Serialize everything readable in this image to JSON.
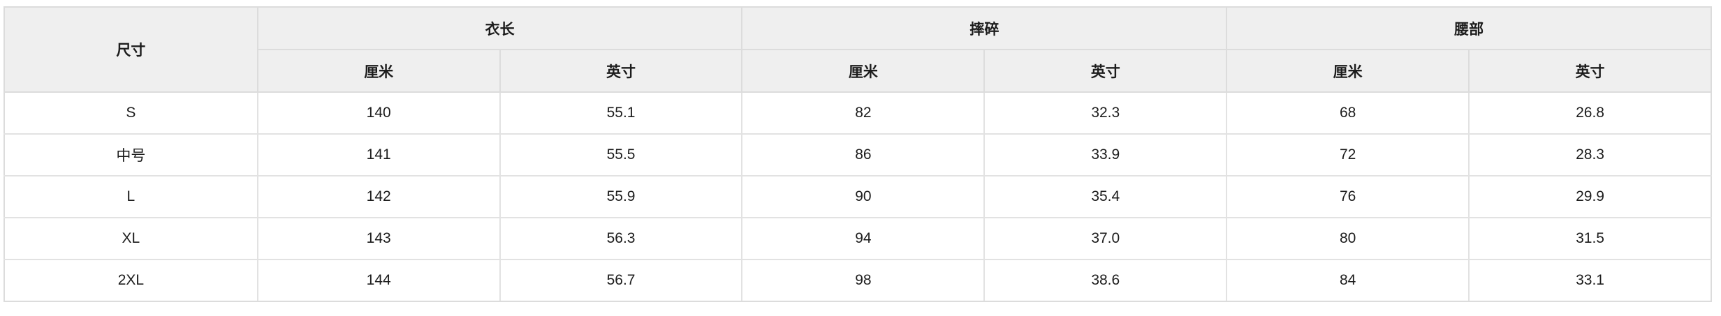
{
  "chart_data": {
    "type": "table",
    "corner_header": "尺寸",
    "column_groups": [
      {
        "label": "衣长",
        "subcolumns": [
          "厘米",
          "英寸"
        ]
      },
      {
        "label": "摔碎",
        "subcolumns": [
          "厘米",
          "英寸"
        ]
      },
      {
        "label": "腰部",
        "subcolumns": [
          "厘米",
          "英寸"
        ]
      }
    ],
    "rows": [
      {
        "size": "S",
        "values": [
          "140",
          "55.1",
          "82",
          "32.3",
          "68",
          "26.8"
        ]
      },
      {
        "size": "中号",
        "values": [
          "141",
          "55.5",
          "86",
          "33.9",
          "72",
          "28.3"
        ]
      },
      {
        "size": "L",
        "values": [
          "142",
          "55.9",
          "90",
          "35.4",
          "76",
          "29.9"
        ]
      },
      {
        "size": "XL",
        "values": [
          "143",
          "56.3",
          "94",
          "37.0",
          "80",
          "31.5"
        ]
      },
      {
        "size": "2XL",
        "values": [
          "144",
          "56.7",
          "98",
          "38.6",
          "84",
          "33.1"
        ]
      }
    ],
    "layout": {
      "grid": "full-borders",
      "header_rows": 2,
      "data_rows": 5,
      "columns": 7
    }
  },
  "colors": {
    "header_background": "#efefef",
    "border": "#dcdcdc",
    "row_background": "#ffffff",
    "text": "#1c1c1c"
  }
}
